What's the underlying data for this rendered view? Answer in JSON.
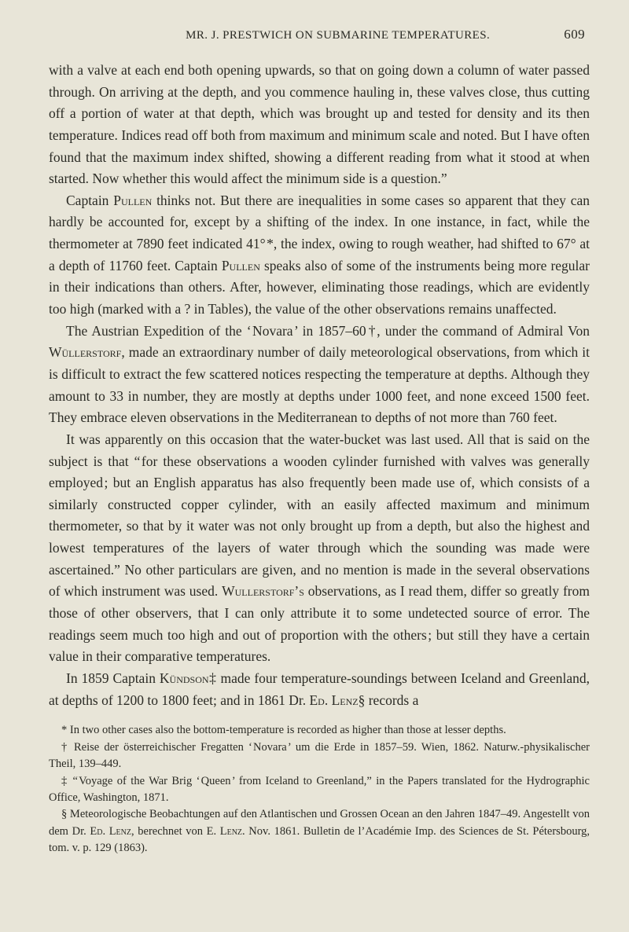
{
  "header": {
    "running_title": "MR. J. PRESTWICH ON SUBMARINE TEMPERATURES.",
    "page_number": "609"
  },
  "paragraphs": {
    "p1": "with a valve at each end both opening upwards, so that on going down a column of water passed through. On arriving at the depth, and you commence hauling in, these valves close, thus cutting off a portion of water at that depth, which was brought up and tested for density and its then temperature. Indices read off both from maximum and minimum scale and noted. But I have often found that the maximum index shifted, showing a different reading from what it stood at when started. Now whether this would affect the minimum side is a question.”",
    "p2_a": "Captain ",
    "p2_name": "Pullen",
    "p2_b": " thinks not. But there are inequalities in some cases so apparent that they can hardly be accounted for, except by a shifting of the index. In one instance, in fact, while the thermometer at 7890 feet indicated 41° *, the index, owing to rough weather, had shifted to 67° at a depth of 11760 feet. Captain ",
    "p2_name2": "Pullen",
    "p2_c": " speaks also of some of the instruments being more regular in their indications than others. After, however, eliminating those readings, which are evidently too high (marked with a ? in Tables), the value of the other observations remains unaffected.",
    "p3_a": "The Austrian Expedition of the ‘ Novara ’ in 1857–60 †, under the command of Admiral Von ",
    "p3_name": "Wüllerstorf",
    "p3_b": ", made an extraordinary number of daily meteorological observations, from which it is difficult to extract the few scattered notices respecting the temperature at depths. Although they amount to 33 in number, they are mostly at depths under 1000 feet, and none exceed 1500 feet. They embrace eleven observa­tions in the Mediterranean to depths of not more than 760 feet.",
    "p4_a": "It was apparently on this occasion that the water-bucket was last used. All that is said on the subject is that “ for these observations a wooden cylinder furnished with valves was generally employed ; but an English apparatus has also frequently been made use of, which consists of a similarly constructed copper cylinder, with an easily affected maximum and minimum thermometer, so that by it water was not only brought up from a depth, but also the highest and lowest temperatures of the layers of water through which the sounding was made were ascertained.” No other particulars are given, and no mention is made in the several observations of which instrument was used. ",
    "p4_name": "Wul­lerstorf’s",
    "p4_b": " observations, as I read them, differ so greatly from those of other observers, that I can only attribute it to some undetected source of error. The readings seem much too high and out of proportion with the others ; but still they have a certain value in their comparative temperatures.",
    "p5_a": "In 1859 Captain ",
    "p5_name": "Kündson",
    "p5_b": "‡ made four temperature-soundings between Iceland and Greenland, at depths of 1200 to 1800 feet; and in 1861 Dr. ",
    "p5_name2": "Ed. Lenz",
    "p5_c": "§ records a"
  },
  "footnotes": {
    "f1": "* In two other cases also the bottom-temperature is recorded as higher than those at lesser depths.",
    "f2": "† Reise der österreichischer Fregatten ‘ Novara ’ um die Erde in 1857–59. Wien, 1862. Naturw.-phy­sikalischer Theil, 139–449.",
    "f3": "‡ “ Voyage of the War Brig ‘ Queen ’ from Iceland to Greenland,” in the Papers translated for the Hydro­graphic Office, Washington, 1871.",
    "f4_a": "§ Meteorologische Beobachtungen auf den Atlantischen und Grossen Ocean an den Jahren 1847–49. Angestellt von dem Dr. ",
    "f4_name1": "Ed. Lenz",
    "f4_b": ", berechnet von E. ",
    "f4_name2": "Lenz",
    "f4_c": ". Nov. 1861. Bulletin de l’Académie Imp. des Sciences de St. Pétersbourg, tom. v. p. 129 (1863)."
  }
}
